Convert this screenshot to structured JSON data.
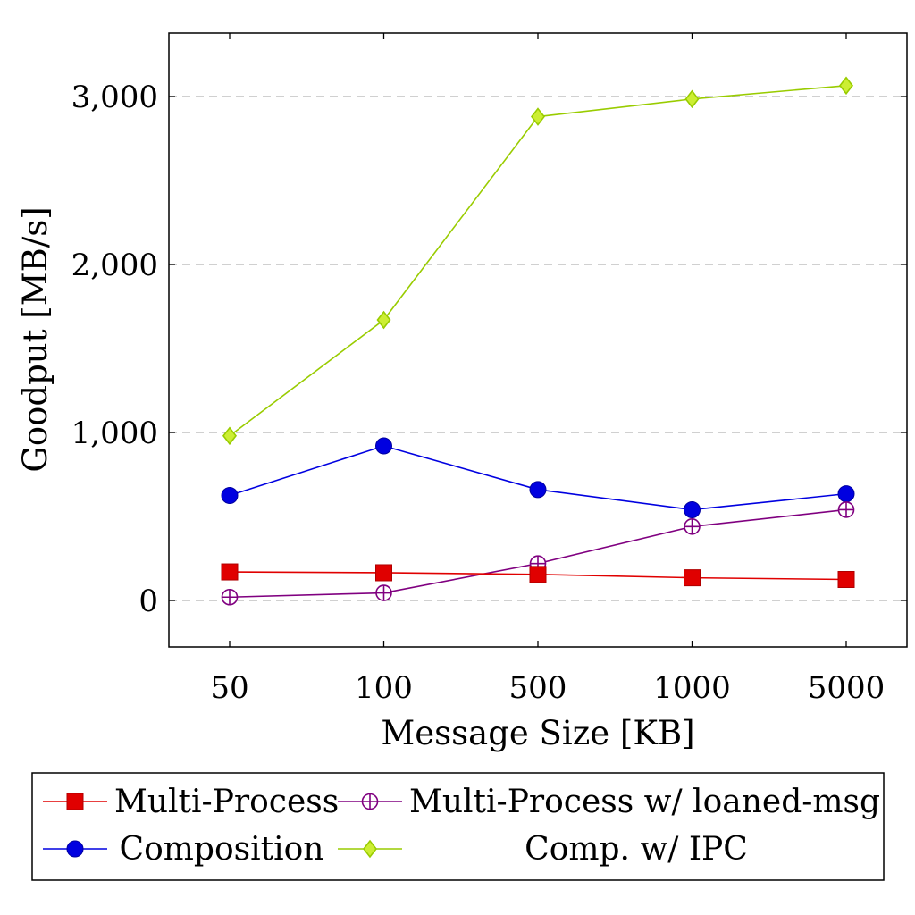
{
  "chart_data": {
    "type": "line",
    "xlabel": "Message Size [KB]",
    "ylabel": "Goodput [MB/s]",
    "categories": [
      "50",
      "100",
      "500",
      "1000",
      "5000"
    ],
    "ylim": [
      -280,
      3380
    ],
    "yticks": [
      0,
      1000,
      2000,
      3000
    ],
    "ytick_labels": [
      "0",
      "1,000",
      "2,000",
      "3,000"
    ],
    "grid": "horizontal dashed",
    "legend_position": "below plot",
    "series": [
      {
        "name": "Multi-Process",
        "color": "#e00000",
        "marker": "square",
        "values": [
          170,
          165,
          155,
          135,
          125
        ]
      },
      {
        "name": "Multi-Process w/ loaned-msg",
        "color": "#800080",
        "marker": "oplus",
        "values": [
          20,
          45,
          220,
          440,
          540
        ]
      },
      {
        "name": "Composition",
        "color": "#0000e0",
        "marker": "circle",
        "values": [
          625,
          920,
          660,
          540,
          635
        ]
      },
      {
        "name": "Comp. w/ IPC",
        "color": "#99cc00",
        "marker": "diamond",
        "values": [
          980,
          1670,
          2880,
          2985,
          3065
        ]
      }
    ]
  }
}
